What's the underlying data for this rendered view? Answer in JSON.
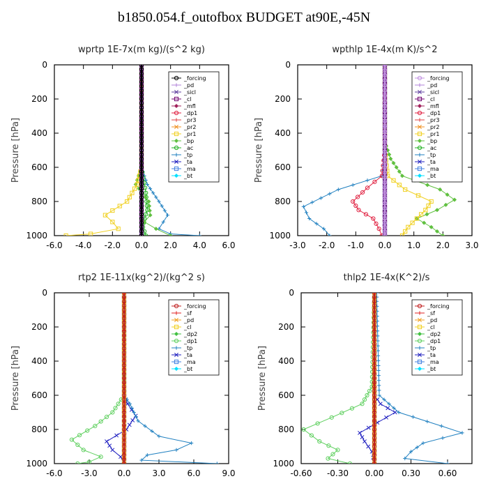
{
  "title": "b1850.054.f_outofbox  BUDGET at90E,-45N",
  "chart_data": [
    {
      "type": "line",
      "title": "wprtp   1E-7x(m kg)/(s^2 kg)",
      "ylabel": "Pressure  [hPa]",
      "xlim": [
        -6.0,
        6.0
      ],
      "ylim": [
        1000,
        0
      ],
      "xticks": [
        "-6.0",
        "-4.0",
        "-2.0",
        "0.0",
        "2.0",
        "4.0",
        "6.0"
      ],
      "yticks": [
        "0",
        "200",
        "400",
        "600",
        "800",
        "1000"
      ],
      "legend_position": "top-right",
      "series": [
        {
          "name": "_forcing",
          "color": "#000000",
          "x": [
            0,
            0,
            0,
            0,
            0,
            0,
            0,
            0,
            0,
            0,
            0,
            0
          ],
          "y": [
            0,
            100,
            200,
            300,
            400,
            500,
            600,
            700,
            800,
            900,
            950,
            1000
          ]
        },
        {
          "name": "_pd",
          "color": "#b080d8",
          "x": [
            0,
            0,
            0,
            0,
            0
          ],
          "y": [
            0,
            250,
            500,
            750,
            1000
          ]
        },
        {
          "name": "_sicl",
          "color": "#6040a0",
          "x": [
            0,
            0,
            0,
            0,
            0
          ],
          "y": [
            0,
            250,
            500,
            750,
            1000
          ]
        },
        {
          "name": "_cl",
          "color": "#700070",
          "x": [
            0,
            0,
            0,
            0,
            0
          ],
          "y": [
            0,
            250,
            500,
            750,
            1000
          ]
        },
        {
          "name": "_mfl",
          "color": "#a0205a",
          "x": [
            0,
            0,
            0,
            0,
            0
          ],
          "y": [
            0,
            250,
            500,
            750,
            1000
          ]
        },
        {
          "name": "_dp1",
          "color": "#e02040",
          "x": [
            0,
            0,
            0,
            0,
            0
          ],
          "y": [
            0,
            250,
            500,
            750,
            1000
          ]
        },
        {
          "name": "_pr3",
          "color": "#e04040",
          "x": [
            0,
            0,
            0,
            0,
            0
          ],
          "y": [
            0,
            250,
            500,
            750,
            1000
          ]
        },
        {
          "name": "_pr2",
          "color": "#f09020",
          "x": [
            0,
            0,
            0,
            0,
            0
          ],
          "y": [
            0,
            250,
            500,
            750,
            1000
          ]
        },
        {
          "name": "_pr1",
          "color": "#f0d020",
          "x": [
            0,
            0,
            -0.3,
            -1.0,
            -2.5,
            -2.0,
            -1.6,
            -3.5,
            -5.2
          ],
          "y": [
            0,
            600,
            700,
            800,
            880,
            920,
            960,
            990,
            1000
          ]
        },
        {
          "name": "_bp",
          "color": "#60c040",
          "x": [
            0,
            0,
            -0.4,
            0.5,
            0.6,
            0.2,
            1.0,
            2.0
          ],
          "y": [
            0,
            600,
            700,
            800,
            880,
            920,
            960,
            1000
          ]
        },
        {
          "name": "_ac",
          "color": "#20b020",
          "x": [
            0,
            0,
            0.3,
            0.4,
            0.2,
            0.1,
            0.3
          ],
          "y": [
            0,
            600,
            750,
            850,
            900,
            950,
            1000
          ]
        },
        {
          "name": "_tp",
          "color": "#2080c0",
          "x": [
            0,
            0,
            0.4,
            1.2,
            1.8,
            1.5,
            1.2,
            2.0,
            4.0
          ],
          "y": [
            0,
            600,
            700,
            800,
            880,
            920,
            960,
            990,
            1000
          ]
        },
        {
          "name": "_ta",
          "color": "#2020c0",
          "x": [
            0,
            0,
            0,
            0,
            0
          ],
          "y": [
            0,
            250,
            500,
            750,
            1000
          ]
        },
        {
          "name": "_ma",
          "color": "#4080e0",
          "x": [
            0,
            0,
            0,
            0,
            0
          ],
          "y": [
            0,
            250,
            500,
            750,
            1000
          ]
        },
        {
          "name": "_bt",
          "color": "#00e0ff",
          "x": [
            0,
            0,
            0,
            0,
            0
          ],
          "y": [
            0,
            250,
            500,
            750,
            1000
          ]
        }
      ]
    },
    {
      "type": "line",
      "title": "wpthlp   1E-4x(m K)/s^2",
      "ylabel": "Pressure  [hPa]",
      "xlim": [
        -3.0,
        3.0
      ],
      "ylim": [
        1000,
        0
      ],
      "xticks": [
        "-3.0",
        "-2.0",
        "-1.0",
        "0.0",
        "1.0",
        "2.0",
        "3.0"
      ],
      "yticks": [
        "0",
        "200",
        "400",
        "600",
        "800",
        "1000"
      ],
      "legend_position": "top-right",
      "series": [
        {
          "name": "_forcing",
          "color": "#c090e0",
          "x": [
            0,
            0,
            0,
            0,
            0,
            0,
            0,
            0
          ],
          "y": [
            0,
            150,
            300,
            450,
            600,
            750,
            900,
            1000
          ]
        },
        {
          "name": "_pd",
          "color": "#b080d8",
          "x": [
            0,
            0,
            0,
            0,
            0
          ],
          "y": [
            0,
            250,
            500,
            750,
            1000
          ]
        },
        {
          "name": "_sicl",
          "color": "#6040a0",
          "x": [
            0,
            0,
            0,
            0,
            0
          ],
          "y": [
            0,
            250,
            500,
            750,
            1000
          ]
        },
        {
          "name": "_cl",
          "color": "#700070",
          "x": [
            0,
            0,
            0,
            0,
            0
          ],
          "y": [
            0,
            250,
            500,
            750,
            1000
          ]
        },
        {
          "name": "_mfl",
          "color": "#a0205a",
          "x": [
            0,
            0,
            0,
            0,
            0
          ],
          "y": [
            0,
            250,
            500,
            750,
            1000
          ]
        },
        {
          "name": "_dp1",
          "color": "#e02040",
          "x": [
            0,
            0,
            -0.1,
            -0.6,
            -1.1,
            -0.9,
            -0.4,
            -0.2,
            -0.1
          ],
          "y": [
            0,
            500,
            650,
            720,
            800,
            850,
            900,
            960,
            1000
          ]
        },
        {
          "name": "_pr3",
          "color": "#e04040",
          "x": [
            0,
            0,
            0,
            0,
            0
          ],
          "y": [
            0,
            250,
            500,
            750,
            1000
          ]
        },
        {
          "name": "_pr2",
          "color": "#f09020",
          "x": [
            0,
            0,
            0,
            0,
            0
          ],
          "y": [
            0,
            250,
            500,
            750,
            1000
          ]
        },
        {
          "name": "_pr1",
          "color": "#f0d020",
          "x": [
            0,
            0,
            0.1,
            0.7,
            1.6,
            1.4,
            0.8,
            0.6
          ],
          "y": [
            0,
            500,
            650,
            730,
            800,
            850,
            950,
            1000
          ]
        },
        {
          "name": "_bp",
          "color": "#60c040",
          "x": [
            0,
            0,
            0.2,
            0.6,
            1.9,
            2.4,
            1.8,
            1.1,
            1.6,
            2.0
          ],
          "y": [
            0,
            450,
            550,
            650,
            730,
            790,
            850,
            900,
            950,
            1000
          ]
        },
        {
          "name": "_ac",
          "color": "#20b020",
          "x": [
            0,
            0,
            0,
            0,
            0
          ],
          "y": [
            0,
            250,
            500,
            750,
            1000
          ]
        },
        {
          "name": "_tp",
          "color": "#2080c0",
          "x": [
            0,
            0,
            -0.1,
            -1.6,
            -2.8,
            -2.6,
            -2.1,
            -1.9
          ],
          "y": [
            0,
            500,
            650,
            730,
            830,
            900,
            960,
            1000
          ]
        },
        {
          "name": "_ta",
          "color": "#2020c0",
          "x": [
            0,
            0,
            0,
            0,
            0
          ],
          "y": [
            0,
            250,
            500,
            750,
            1000
          ]
        },
        {
          "name": "_ma",
          "color": "#4080e0",
          "x": [
            0,
            0,
            0,
            0,
            0
          ],
          "y": [
            0,
            250,
            500,
            750,
            1000
          ]
        },
        {
          "name": "_bt",
          "color": "#00e0ff",
          "x": [
            0,
            0,
            0,
            0,
            0
          ],
          "y": [
            0,
            250,
            500,
            750,
            1000
          ]
        }
      ]
    },
    {
      "type": "line",
      "title": "rtp2   1E-11x(kg^2)/(kg^2 s)",
      "ylabel": "Pressure  [hPa]",
      "xlim": [
        -6.0,
        9.0
      ],
      "ylim": [
        1000,
        0
      ],
      "xticks": [
        "-6.0",
        "-3.0",
        "0.0",
        "3.0",
        "6.0",
        "9.0"
      ],
      "yticks": [
        "0",
        "200",
        "400",
        "600",
        "800",
        "1000"
      ],
      "legend_position": "top-right",
      "series": [
        {
          "name": "_forcing",
          "color": "#c02020",
          "x": [
            0,
            0,
            0,
            0,
            0,
            0,
            0,
            0,
            0,
            0,
            0,
            0
          ],
          "y": [
            0,
            100,
            200,
            300,
            400,
            500,
            600,
            700,
            800,
            900,
            950,
            1000
          ]
        },
        {
          "name": "_sf",
          "color": "#e02020",
          "x": [
            0,
            0,
            0,
            0,
            0
          ],
          "y": [
            0,
            250,
            500,
            750,
            1000
          ]
        },
        {
          "name": "_pd",
          "color": "#f0a020",
          "x": [
            0,
            0,
            0,
            0,
            0
          ],
          "y": [
            0,
            250,
            500,
            750,
            1000
          ]
        },
        {
          "name": "_cl",
          "color": "#f0d020",
          "x": [
            0,
            0,
            0,
            0,
            0
          ],
          "y": [
            0,
            250,
            500,
            750,
            1000
          ]
        },
        {
          "name": "_dp2",
          "color": "#40c040",
          "x": [
            0,
            0,
            0,
            0,
            0
          ],
          "y": [
            0,
            250,
            500,
            750,
            1000
          ]
        },
        {
          "name": "_dp1",
          "color": "#60d060",
          "x": [
            0,
            0,
            -1.0,
            -2.5,
            -4.5,
            -3.5,
            -2.0,
            -3.0,
            -4.0
          ],
          "y": [
            0,
            600,
            700,
            780,
            860,
            920,
            960,
            990,
            1000
          ]
        },
        {
          "name": "_tp",
          "color": "#2080c0",
          "x": [
            0,
            0,
            0.5,
            1.2,
            3.0,
            5.8,
            4.5,
            2.0,
            1.5,
            8.0
          ],
          "y": [
            0,
            600,
            650,
            750,
            840,
            880,
            920,
            950,
            980,
            1000
          ]
        },
        {
          "name": "_ta",
          "color": "#2020c0",
          "x": [
            0,
            0,
            0.3,
            1.0,
            0.2,
            -1.5,
            -1.0,
            -0.3,
            0
          ],
          "y": [
            0,
            600,
            650,
            720,
            800,
            870,
            920,
            960,
            1000
          ]
        },
        {
          "name": "_ma",
          "color": "#4080e0",
          "x": [
            0,
            0,
            0,
            0,
            0
          ],
          "y": [
            0,
            250,
            500,
            750,
            1000
          ]
        },
        {
          "name": "_bt",
          "color": "#00e0ff",
          "x": [
            0,
            0,
            0,
            0,
            0
          ],
          "y": [
            0,
            250,
            500,
            750,
            1000
          ]
        }
      ]
    },
    {
      "type": "line",
      "title": "thlp2   1E-4x(K^2)/s",
      "ylabel": "Pressure  [hPa]",
      "xlim": [
        -0.6,
        0.8
      ],
      "ylim": [
        1000,
        0
      ],
      "xticks": [
        "-0.60",
        "-0.30",
        "0.00",
        "0.30",
        "0.60"
      ],
      "yticks": [
        "0",
        "200",
        "400",
        "600",
        "800",
        "1000"
      ],
      "legend_position": "top-right",
      "series": [
        {
          "name": "_forcing",
          "color": "#c02020",
          "x": [
            0,
            0,
            0,
            0,
            0,
            0,
            0,
            0,
            0,
            0,
            0,
            0
          ],
          "y": [
            0,
            100,
            200,
            300,
            400,
            500,
            600,
            700,
            800,
            900,
            950,
            1000
          ]
        },
        {
          "name": "_sf",
          "color": "#e02020",
          "x": [
            0,
            0,
            0,
            0,
            0
          ],
          "y": [
            0,
            250,
            500,
            750,
            1000
          ]
        },
        {
          "name": "_pd",
          "color": "#f0a020",
          "x": [
            0,
            0,
            0,
            0,
            0
          ],
          "y": [
            0,
            250,
            500,
            750,
            1000
          ]
        },
        {
          "name": "_cl",
          "color": "#f0d020",
          "x": [
            0,
            0,
            0,
            0,
            0
          ],
          "y": [
            0,
            250,
            500,
            750,
            1000
          ]
        },
        {
          "name": "_dp2",
          "color": "#40c040",
          "x": [
            0,
            0,
            0,
            0,
            0
          ],
          "y": [
            0,
            250,
            500,
            750,
            1000
          ]
        },
        {
          "name": "_dp1",
          "color": "#60d060",
          "x": [
            0,
            -0.02,
            -0.1,
            -0.35,
            -0.58,
            -0.45,
            -0.3,
            -0.38,
            -0.2
          ],
          "y": [
            0,
            550,
            650,
            730,
            800,
            870,
            920,
            970,
            1000
          ]
        },
        {
          "name": "_tp",
          "color": "#2080c0",
          "x": [
            0.02,
            0.02,
            0.04,
            0.2,
            0.55,
            0.72,
            0.4,
            0.3,
            0.25,
            0.6
          ],
          "y": [
            0,
            50,
            600,
            700,
            780,
            820,
            880,
            930,
            970,
            1000
          ]
        },
        {
          "name": "_ta",
          "color": "#2020c0",
          "x": [
            0,
            0,
            0.05,
            0.17,
            -0.12,
            -0.08,
            -0.02,
            0
          ],
          "y": [
            0,
            600,
            650,
            700,
            820,
            870,
            930,
            1000
          ]
        },
        {
          "name": "_ma",
          "color": "#4080e0",
          "x": [
            0,
            0,
            0,
            0,
            0
          ],
          "y": [
            0,
            250,
            500,
            750,
            1000
          ]
        },
        {
          "name": "_bt",
          "color": "#00e0ff",
          "x": [
            0,
            0,
            0,
            0,
            0
          ],
          "y": [
            0,
            250,
            500,
            750,
            1000
          ]
        }
      ]
    }
  ]
}
